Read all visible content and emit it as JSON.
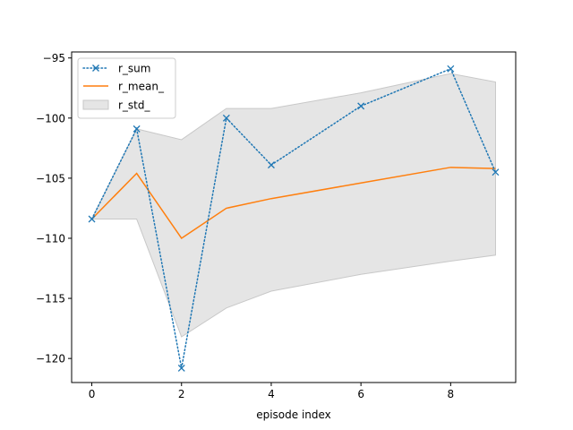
{
  "chart_data": {
    "type": "line",
    "title": "",
    "xlabel": "episode index",
    "ylabel": "",
    "xlim": [
      -0.45,
      9.45
    ],
    "ylim": [
      -122.0,
      -94.5
    ],
    "xticks": [
      0,
      2,
      4,
      6,
      8
    ],
    "xtick_labels": [
      "0",
      "2",
      "4",
      "6",
      "8"
    ],
    "yticks": [
      -120,
      -115,
      -110,
      -105,
      -100,
      -95
    ],
    "ytick_labels": [
      "−120",
      "−115",
      "−110",
      "−105",
      "−100",
      "−95"
    ],
    "grid": false,
    "legend_position": "upper-left",
    "x": [
      0,
      1,
      2,
      3,
      4,
      6,
      8,
      9
    ],
    "series": [
      {
        "name": "r_sum",
        "style": "dotted-line-x-markers",
        "color": "#1f77b4",
        "values": [
          -108.4,
          -100.9,
          -120.8,
          -100.0,
          -103.9,
          -99.0,
          -95.9,
          -104.5
        ]
      },
      {
        "name": "r_mean_",
        "style": "solid-line",
        "color": "#ff7f0e",
        "values": [
          -108.4,
          -104.6,
          -110.0,
          -107.5,
          -106.7,
          -105.4,
          -104.1,
          -104.2
        ]
      }
    ],
    "band": {
      "name": "r_std_",
      "color": "#d3d3d3",
      "x": [
        0,
        1,
        2,
        3,
        4,
        6,
        8,
        9
      ],
      "upper": [
        -108.4,
        -100.9,
        -101.8,
        -99.2,
        -99.2,
        -97.9,
        -96.3,
        -97.0
      ],
      "lower": [
        -108.4,
        -108.4,
        -118.2,
        -115.8,
        -114.4,
        -113.0,
        -111.9,
        -111.4
      ]
    }
  }
}
